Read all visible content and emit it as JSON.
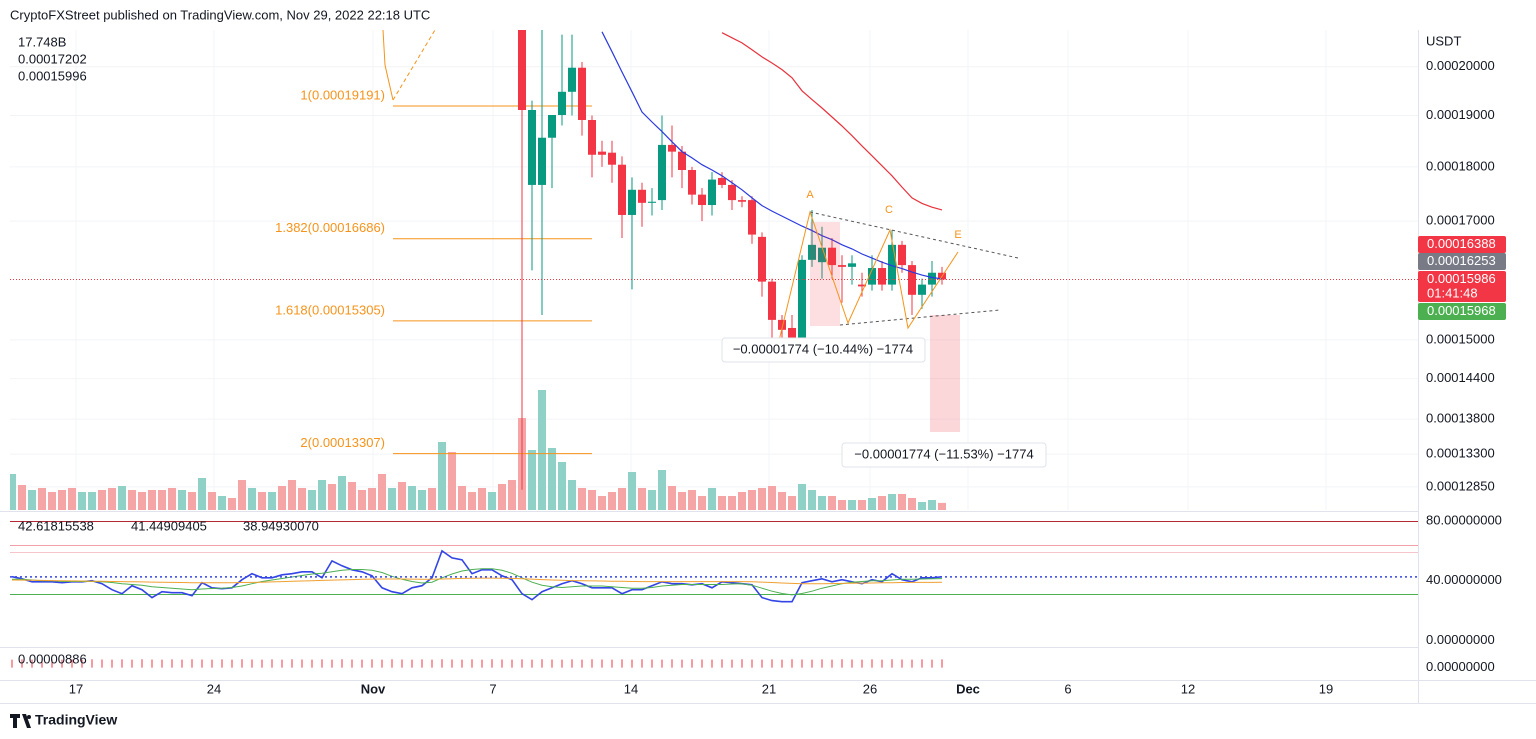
{
  "header": {
    "text": "CryptoFXStreet published on TradingView.com, Nov 29, 2022 22:18 UTC"
  },
  "footer": {
    "brand": "TradingView"
  },
  "chart_data": [
    {
      "type": "candlestick",
      "unit": "USDT",
      "log": true,
      "ylim": [
        0.0001254,
        0.0002079
      ],
      "yticks": [
        {
          "value": 0.0002,
          "label": "0.00020000"
        },
        {
          "value": 0.00019,
          "label": "0.00019000"
        },
        {
          "value": 0.00018,
          "label": "0.00018000"
        },
        {
          "value": 0.00017,
          "label": "0.00017000"
        },
        {
          "value": 0.00015,
          "label": "0.00015000"
        },
        {
          "value": 0.000144,
          "label": "0.00014400"
        },
        {
          "value": 0.000138,
          "label": "0.00013800"
        },
        {
          "value": 0.000133,
          "label": "0.00013300"
        },
        {
          "value": 0.0001285,
          "label": "0.00012850"
        }
      ],
      "up_color": "#089981",
      "down_color": "#f23645",
      "open": [
        0.0002084,
        0.0001766,
        0.0001766,
        0.0001856,
        0.0001901,
        0.0001948,
        0.0001998,
        0.0001891,
        0.0001829,
        0.0001827,
        0.0001804,
        0.0001711,
        0.0001757,
        0.0001733,
        0.0001738,
        0.0001842,
        0.0001829,
        0.0001794,
        0.0001748,
        0.0001729,
        0.0001779,
        0.0001766,
        0.0001738,
        0.0001738,
        0.0001672,
        0.0001595,
        0.0001532,
        0.0001519,
        0.0001492,
        0.0001632,
        0.0001628,
        0.0001653,
        0.0001623,
        0.000162,
        0.000159,
        0.000159,
        0.0001618,
        0.000159,
        0.0001658,
        0.0001623,
        0.0001573,
        0.000159,
        0.000161
      ],
      "high": [
        0.0002091,
        0.000193,
        0.000208,
        0.00019,
        0.0002069,
        0.0002069,
        0.000201,
        0.00019,
        0.000185,
        0.000185,
        0.000182,
        0.000178,
        0.000177,
        0.000176,
        0.00019,
        0.000188,
        0.000184,
        0.00018,
        0.000176,
        0.000179,
        0.000179,
        0.0001775,
        0.0001745,
        0.0001745,
        0.000168,
        0.00016,
        0.000154,
        0.000154,
        0.000164,
        0.000172,
        0.000169,
        0.000167,
        0.000164,
        0.000164,
        0.000161,
        0.000164,
        0.000163,
        0.0001684,
        0.0001665,
        0.000163,
        0.00016,
        0.000163,
        0.000162
      ],
      "low": [
        0.0001281,
        0.0001614,
        0.000154,
        0.000176,
        0.000188,
        0.00019,
        0.000186,
        0.000178,
        0.00018,
        0.000177,
        0.000167,
        0.0001582,
        0.000169,
        0.000171,
        0.000172,
        0.000178,
        0.000176,
        0.000173,
        0.00017,
        0.000171,
        0.000176,
        0.000172,
        0.0001725,
        0.000166,
        0.000157,
        0.00015,
        0.000148,
        0.000147,
        0.0001484,
        0.000162,
        0.00016,
        0.00016,
        0.000156,
        0.000159,
        0.000157,
        0.000158,
        0.000158,
        0.000158,
        0.000161,
        0.000154,
        0.000155,
        0.000157,
        0.000159
      ],
      "close": [
        0.0001911,
        0.0001911,
        0.0001856,
        0.0001901,
        0.0001948,
        0.0001998,
        0.0001891,
        0.0001823,
        0.0001823,
        0.0001804,
        0.0001711,
        0.0001757,
        0.0001733,
        0.0001735,
        0.0001842,
        0.0001829,
        0.0001794,
        0.0001748,
        0.0001729,
        0.0001776,
        0.0001766,
        0.0001738,
        0.0001735,
        0.0001676,
        0.0001595,
        0.0001532,
        0.0001516,
        0.0001492,
        0.0001632,
        0.0001658,
        0.0001653,
        0.0001623,
        0.000162,
        0.0001626,
        0.0001587,
        0.0001618,
        0.000159,
        0.0001658,
        0.0001623,
        0.0001573,
        0.000159,
        0.000161,
        0.00015986
      ],
      "series": [
        {
          "color": "#2a3ae0",
          "last_label": "0.00015996",
          "values": [
            null,
            null,
            null,
            null,
            null,
            null,
            null,
            null,
            0.0002075,
            0.0002032,
            0.0001989,
            0.0001948,
            0.0001907,
            0.0001887,
            0.0001868,
            0.0001848,
            0.0001829,
            0.0001817,
            0.0001804,
            0.0001794,
            0.0001783,
            0.000177,
            0.0001757,
            0.0001742,
            0.0001728,
            0.0001718,
            0.0001709,
            0.00017,
            0.0001691,
            0.0001683,
            0.0001674,
            0.0001667,
            0.0001658,
            0.0001651,
            0.0001642,
            0.0001635,
            0.0001628,
            0.0001622,
            0.0001617,
            0.0001611,
            0.0001606,
            0.0001602,
            0.00015996
          ]
        },
        {
          "color": "#e8323c",
          "last_label": "0.00017202",
          "values": [
            null,
            null,
            null,
            null,
            null,
            null,
            null,
            null,
            null,
            null,
            null,
            null,
            null,
            null,
            null,
            null,
            null,
            null,
            null,
            null,
            0.0002073,
            0.0002062,
            0.0002051,
            0.0002036,
            0.0002021,
            0.0002008,
            0.0001994,
            0.0001977,
            0.000195,
            0.0001932,
            0.0001915,
            0.0001897,
            0.0001879,
            0.000186,
            0.000184,
            0.0001821,
            0.0001802,
            0.0001783,
            0.0001762,
            0.0001742,
            0.0001732,
            0.0001725,
            0.00017202
          ]
        }
      ],
      "volume": {
        "last_label": "17.748B",
        "values": [
          90,
          62.5,
          50,
          55,
          45,
          50,
          55,
          45,
          45,
          50,
          55,
          60,
          50,
          45,
          50,
          50,
          55,
          50,
          45,
          80,
          45,
          35,
          30,
          75,
          55,
          45,
          45,
          60,
          75,
          55,
          50,
          75,
          65,
          85,
          70,
          50,
          55,
          90,
          55,
          70,
          60,
          50,
          55,
          170,
          145,
          60,
          45,
          55,
          45,
          65,
          75,
          230,
          150,
          300,
          155,
          120,
          75,
          55,
          50,
          35,
          45,
          55,
          95,
          55,
          50,
          100,
          60,
          45,
          50,
          35,
          55,
          35,
          35,
          45,
          50,
          55,
          60,
          45,
          35,
          65,
          50,
          35,
          35,
          25,
          25,
          25,
          30,
          35,
          40,
          40,
          30,
          20,
          25,
          17.748
        ],
        "colors": [
          "#8fd1c7",
          "#f5a5a5",
          "#8fd1c7",
          "#f5a5a5",
          "#f5a5a5",
          "#f5a5a5",
          "#f5a5a5",
          "#8fd1c7",
          "#8fd1c7",
          "#f5a5a5",
          "#f5a5a5",
          "#8fd1c7",
          "#f5a5a5",
          "#f5a5a5",
          "#f5a5a5",
          "#f5a5a5",
          "#f5a5a5",
          "#8fd1c7",
          "#f5a5a5",
          "#8fd1c7",
          "#f5a5a5",
          "#8fd1c7",
          "#f5a5a5",
          "#f5a5a5",
          "#8fd1c7",
          "#f5a5a5",
          "#8fd1c7",
          "#f5a5a5",
          "#f5a5a5",
          "#f5a5a5",
          "#8fd1c7",
          "#8fd1c7",
          "#f5a5a5",
          "#8fd1c7",
          "#f5a5a5",
          "#f5a5a5",
          "#f5a5a5",
          "#f5a5a5",
          "#8fd1c7",
          "#f5a5a5",
          "#8fd1c7",
          "#8fd1c7",
          "#f5a5a5",
          "#8fd1c7",
          "#f5a5a5",
          "#f5a5a5",
          "#f5a5a5",
          "#f5a5a5",
          "#8fd1c7",
          "#f5a5a5",
          "#f5a5a5",
          "#f5a5a5",
          "#8fd1c7",
          "#8fd1c7",
          "#8fd1c7",
          "#8fd1c7",
          "#8fd1c7",
          "#f5a5a5",
          "#f5a5a5",
          "#f5a5a5",
          "#f5a5a5",
          "#f5a5a5",
          "#8fd1c7",
          "#f5a5a5",
          "#8fd1c7",
          "#8fd1c7",
          "#f5a5a5",
          "#f5a5a5",
          "#f5a5a5",
          "#f5a5a5",
          "#8fd1c7",
          "#f5a5a5",
          "#f5a5a5",
          "#f5a5a5",
          "#f5a5a5",
          "#f5a5a5",
          "#f5a5a5",
          "#f5a5a5",
          "#f5a5a5",
          "#8fd1c7",
          "#8fd1c7",
          "#8fd1c7",
          "#f5a5a5",
          "#f5a5a5",
          "#8fd1c7",
          "#f5a5a5",
          "#8fd1c7",
          "#f5a5a5",
          "#8fd1c7",
          "#f5a5a5",
          "#f5a5a5",
          "#8fd1c7",
          "#8fd1c7",
          "#f5a5a5"
        ]
      },
      "fib_levels": [
        {
          "value": 0.00019191,
          "label": "1(0.00019191)"
        },
        {
          "value": 0.00016686,
          "label": "1.382(0.00016686)"
        },
        {
          "value": 0.00015305,
          "label": "1.618(0.00015305)"
        },
        {
          "value": 0.00013307,
          "label": "2(0.00013307)"
        }
      ],
      "wave_labels": [
        "A",
        "C",
        "E"
      ],
      "measurements": [
        "−0.00001774 (−10.44%) −1774",
        "−0.00001774 (−11.53%) −1774"
      ],
      "price_tags": [
        {
          "value": 0.00016388,
          "color": "#f23645"
        },
        {
          "value": 0.00016253,
          "color": "#787b86"
        },
        {
          "value": 0.00015986,
          "color": "#f23645",
          "countdown": "01:41:48"
        },
        {
          "value": 0.00015968,
          "color": "#4caf50"
        }
      ],
      "x_labels": [
        "17",
        "24",
        "Nov",
        "7",
        "14",
        "21",
        "26",
        "Dec",
        "6",
        "12",
        "19"
      ]
    },
    {
      "type": "line",
      "ylim": [
        -5,
        86
      ],
      "yticks": [
        {
          "value": 80,
          "label": "80.00000000"
        },
        {
          "value": 40,
          "label": "40.00000000"
        },
        {
          "value": 0,
          "label": "0.00000000"
        }
      ],
      "series": [
        {
          "color": "#3345e6",
          "last_label": "42.61815538",
          "values": [
            42.7,
            41.3,
            39.3,
            39.3,
            39.3,
            38.7,
            39.3,
            39.3,
            40,
            38,
            34,
            31.3,
            36.7,
            34,
            28.7,
            32.7,
            32,
            32,
            30,
            38.7,
            35.3,
            34.7,
            35.3,
            40.7,
            44.7,
            42,
            42,
            44,
            44.7,
            46,
            46,
            42,
            53.3,
            50,
            47.3,
            46,
            43.3,
            35.3,
            32.7,
            31.3,
            35.3,
            36.7,
            42,
            60,
            55.3,
            54,
            44.7,
            47.3,
            47.3,
            43.3,
            40.7,
            31.3,
            27.3,
            32.7,
            35.3,
            38,
            40,
            38,
            35.3,
            35.3,
            35.3,
            31.3,
            34,
            34,
            36.7,
            39.3,
            38,
            38,
            37.3,
            38,
            35.3,
            39.3,
            38.7,
            38,
            37.3,
            28.7,
            26.7,
            26,
            26,
            38.7,
            40,
            41.3,
            39.3,
            40.7,
            39.3,
            38,
            40.7,
            39.3,
            44.7,
            40.7,
            39.3,
            42,
            42,
            42.61815538
          ]
        },
        {
          "color": "#4caf50",
          "last_label": "41.44909405",
          "values": [
            41,
            41,
            40.5,
            40,
            40,
            39.5,
            39.5,
            39.5,
            39.5,
            39.3,
            38.8,
            38,
            37.5,
            37,
            36,
            35.5,
            35,
            34.5,
            34,
            34.5,
            34.8,
            35,
            35.5,
            36.5,
            38,
            39.5,
            40.5,
            41.5,
            42.5,
            43.5,
            44.5,
            45,
            46,
            47,
            47.5,
            47.5,
            47,
            45.5,
            43,
            41,
            39.5,
            38.5,
            39,
            42,
            44.5,
            46.5,
            47.5,
            48,
            48,
            47,
            45,
            42,
            39,
            37,
            36,
            35.5,
            36,
            36.5,
            36.5,
            36.5,
            36,
            35.5,
            35,
            35,
            35.5,
            36.5,
            37,
            37.5,
            37.5,
            37.5,
            37.5,
            37.5,
            37.8,
            38,
            37,
            35,
            33,
            31.5,
            30.5,
            31.5,
            33,
            35,
            36.5,
            38,
            39,
            39.5,
            40,
            40,
            40.5,
            41,
            41,
            41.2,
            41.3,
            41.44909405
          ]
        },
        {
          "color": "#f0a030",
          "last_label": "38.94930070",
          "values": [
            40.5,
            40.4,
            40.3,
            40.2,
            40.1,
            40,
            39.9,
            39.8,
            39.7,
            39.6,
            39.5,
            39.4,
            39.3,
            39.2,
            39.1,
            39,
            38.9,
            38.8,
            38.7,
            38.6,
            38.6,
            38.6,
            38.7,
            38.8,
            38.9,
            39,
            39.2,
            39.4,
            39.6,
            39.8,
            40,
            40.2,
            40.4,
            40.6,
            40.8,
            41,
            41.1,
            41.2,
            41.2,
            41.2,
            41.1,
            41,
            41,
            41.2,
            41.4,
            41.6,
            41.7,
            41.8,
            41.8,
            41.7,
            41.6,
            41.4,
            41.1,
            40.8,
            40.5,
            40.3,
            40.1,
            40,
            39.9,
            39.8,
            39.7,
            39.6,
            39.5,
            39.4,
            39.4,
            39.4,
            39.4,
            39.4,
            39.4,
            39.4,
            39.4,
            39.4,
            39.4,
            39.4,
            39.3,
            39.1,
            38.8,
            38.5,
            38.2,
            38,
            38,
            38,
            38.1,
            38.2,
            38.3,
            38.4,
            38.5,
            38.6,
            38.7,
            38.8,
            38.9,
            38.9,
            38.9,
            38.9493007
          ]
        }
      ]
    },
    {
      "type": "bar",
      "color": "#f23645",
      "last_label": "0.00000886",
      "ylim": [
        -1.32e-05,
        2.11e-05
      ],
      "yticks": [
        {
          "value": 0,
          "label": "0.00000000"
        }
      ],
      "values": [
        8.6e-06,
        8.9e-06,
        8.7e-06,
        9e-06,
        8.8e-06,
        8.6e-06,
        8.9e-06,
        8.7e-06,
        9e-06,
        8.8e-06,
        8.6e-06,
        8.9e-06,
        8.7e-06,
        9e-06,
        8.8e-06,
        8.6e-06,
        8.9e-06,
        8.7e-06,
        9e-06,
        8.8e-06,
        8.6e-06,
        8.9e-06,
        8.7e-06,
        9e-06,
        8.8e-06,
        8.6e-06,
        8.9e-06,
        8.7e-06,
        9e-06,
        8.8e-06,
        8.6e-06,
        8.9e-06,
        8.7e-06,
        9e-06,
        8.8e-06,
        8.6e-06,
        8.9e-06,
        8.7e-06,
        9e-06,
        8.8e-06,
        8.6e-06,
        8.9e-06,
        8.7e-06,
        9e-06,
        8.8e-06,
        8.6e-06,
        8.9e-06,
        8.7e-06,
        9e-06,
        8.8e-06,
        8.6e-06,
        8.9e-06,
        8.7e-06,
        9e-06,
        8.8e-06,
        8.6e-06,
        8.9e-06,
        8.7e-06,
        9e-06,
        8.8e-06,
        8.6e-06,
        8.9e-06,
        8.7e-06,
        9e-06,
        8.8e-06,
        8.6e-06,
        8.9e-06,
        8.7e-06,
        9e-06,
        8.8e-06,
        8.6e-06,
        8.9e-06,
        8.7e-06,
        9e-06,
        8.8e-06,
        8.6e-06,
        8.9e-06,
        8.7e-06,
        9e-06,
        8.8e-06,
        8.6e-06,
        8.9e-06,
        8.7e-06,
        9e-06,
        8.8e-06,
        8.6e-06,
        8.9e-06,
        8.7e-06,
        9e-06,
        8.8e-06,
        8.6e-06,
        8.9e-06,
        8.7e-06,
        8.86e-06
      ]
    }
  ]
}
